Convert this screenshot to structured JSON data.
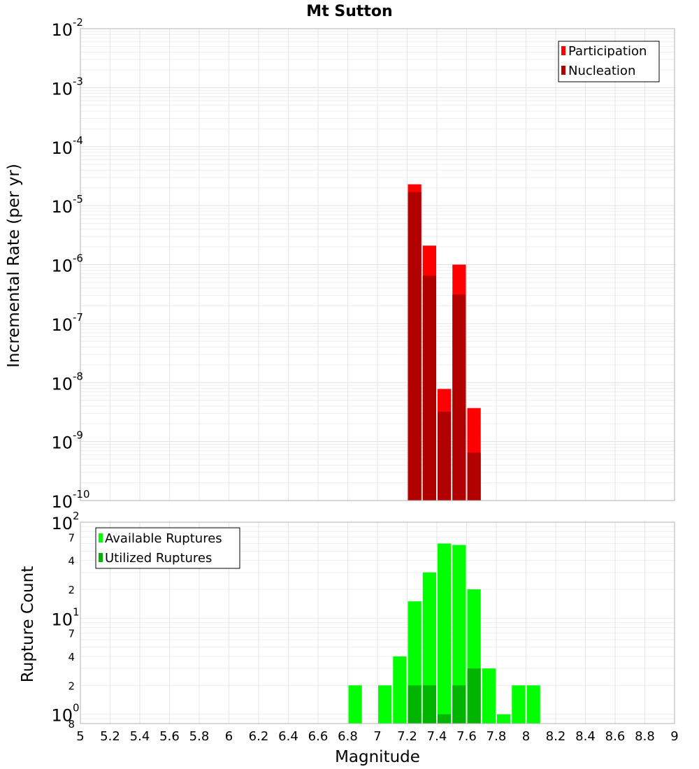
{
  "chart_data": [
    {
      "type": "bar",
      "title": "Mt Sutton",
      "xlabel": "Magnitude",
      "ylabel": "Incremental Rate (per yr)",
      "yscale": "log",
      "ylim": [
        1e-10,
        0.01
      ],
      "xlim": [
        5,
        9
      ],
      "bin_width": 0.1,
      "x_ticks": [
        "5",
        "5.2",
        "5.4",
        "5.6",
        "5.8",
        "6",
        "6.2",
        "6.4",
        "6.6",
        "6.8",
        "7",
        "7.2",
        "7.4",
        "7.6",
        "7.8",
        "8",
        "8.2",
        "8.4",
        "8.6",
        "8.8",
        "9"
      ],
      "y_tick_labels": [
        {
          "base": "10",
          "exp": "-2"
        },
        {
          "base": "10",
          "exp": "-3"
        },
        {
          "base": "10",
          "exp": "-4"
        },
        {
          "base": "10",
          "exp": "-5"
        },
        {
          "base": "10",
          "exp": "-6"
        },
        {
          "base": "10",
          "exp": "-7"
        },
        {
          "base": "10",
          "exp": "-8"
        },
        {
          "base": "10",
          "exp": "-9"
        },
        {
          "base": "10",
          "exp": "-10"
        }
      ],
      "legend": [
        {
          "label": "Participation",
          "color": "#ff0000"
        },
        {
          "label": "Nucleation",
          "color": "#b20000"
        }
      ],
      "legend_position": "top-right",
      "series": [
        {
          "name": "Participation",
          "color": "#ff0000",
          "x": [
            7.25,
            7.35,
            7.45,
            7.55,
            7.65
          ],
          "values": [
            2.3e-05,
            2.1e-06,
            7.8e-09,
            1e-06,
            3.7e-09
          ]
        },
        {
          "name": "Nucleation",
          "color": "#b20000",
          "x": [
            7.25,
            7.35,
            7.45,
            7.55,
            7.65
          ],
          "values": [
            1.7e-05,
            6.5e-07,
            3.2e-09,
            3.1e-07,
            6.5e-10
          ]
        }
      ]
    },
    {
      "type": "bar",
      "xlabel": "Magnitude",
      "ylabel": "Rupture Count",
      "yscale": "log",
      "ylim": [
        0.8,
        100
      ],
      "xlim": [
        5,
        9
      ],
      "bin_width": 0.1,
      "y_major_labels": [
        {
          "base": "10",
          "exp": "2",
          "value": 100
        },
        {
          "base": "10",
          "exp": "1",
          "value": 10
        },
        {
          "base": "10",
          "exp": "0",
          "value": 1
        }
      ],
      "y_minor_labels": [
        {
          "label": "7",
          "value": 70
        },
        {
          "label": "4",
          "value": 40
        },
        {
          "label": "2",
          "value": 20
        },
        {
          "label": "7",
          "value": 7
        },
        {
          "label": "4",
          "value": 4
        },
        {
          "label": "2",
          "value": 2
        },
        {
          "label": "8",
          "value": 0.8
        }
      ],
      "legend": [
        {
          "label": "Available Ruptures",
          "color": "#00ff00"
        },
        {
          "label": "Utilized Ruptures",
          "color": "#00b400"
        }
      ],
      "legend_position": "top-left",
      "series": [
        {
          "name": "Available Ruptures",
          "color": "#00ff00",
          "x": [
            6.85,
            7.05,
            7.15,
            7.25,
            7.35,
            7.45,
            7.55,
            7.65,
            7.75,
            7.85,
            7.95,
            8.05
          ],
          "values": [
            2,
            2,
            4,
            15,
            30,
            60,
            58,
            20,
            3,
            1,
            2,
            2
          ]
        },
        {
          "name": "Utilized Ruptures",
          "color": "#00b400",
          "x": [
            7.25,
            7.35,
            7.45,
            7.55,
            7.65
          ],
          "values": [
            2,
            2,
            1,
            2,
            3
          ]
        }
      ]
    }
  ]
}
